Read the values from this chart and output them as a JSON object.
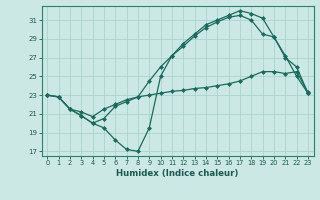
{
  "xlabel": "Humidex (Indice chaleur)",
  "bg_color": "#cce8e4",
  "grid_color": "#aad4ce",
  "line_color": "#1a6b5e",
  "xlim": [
    -0.5,
    23.5
  ],
  "ylim": [
    16.5,
    32.5
  ],
  "xticks": [
    0,
    1,
    2,
    3,
    4,
    5,
    6,
    7,
    8,
    9,
    10,
    11,
    12,
    13,
    14,
    15,
    16,
    17,
    18,
    19,
    20,
    21,
    22,
    23
  ],
  "yticks": [
    17,
    19,
    21,
    23,
    25,
    27,
    29,
    31
  ],
  "line1_x": [
    0,
    1,
    2,
    3,
    4,
    5,
    6,
    7,
    8,
    9,
    10,
    11,
    12,
    13,
    14,
    15,
    16,
    17,
    18,
    19,
    20,
    21,
    22,
    23
  ],
  "line1_y": [
    23.0,
    22.8,
    21.5,
    21.2,
    20.7,
    21.5,
    22.0,
    22.5,
    22.8,
    23.0,
    23.2,
    23.4,
    23.5,
    23.7,
    23.8,
    24.0,
    24.2,
    24.5,
    25.0,
    25.5,
    25.5,
    25.3,
    25.5,
    23.3
  ],
  "line2_x": [
    0,
    1,
    2,
    3,
    4,
    5,
    6,
    7,
    8,
    9,
    10,
    11,
    12,
    13,
    14,
    15,
    16,
    17,
    18,
    19,
    20,
    21,
    22,
    23
  ],
  "line2_y": [
    23.0,
    22.8,
    21.5,
    20.8,
    20.0,
    19.5,
    18.2,
    17.2,
    17.0,
    19.5,
    25.0,
    27.2,
    28.5,
    29.5,
    30.5,
    31.0,
    31.5,
    32.0,
    31.7,
    31.2,
    29.2,
    27.2,
    25.0,
    23.2
  ],
  "line3_x": [
    0,
    1,
    2,
    3,
    4,
    5,
    6,
    7,
    8,
    9,
    10,
    11,
    12,
    13,
    14,
    15,
    16,
    17,
    18,
    19,
    20,
    21,
    22,
    23
  ],
  "line3_y": [
    23.0,
    22.8,
    21.5,
    20.8,
    20.0,
    20.5,
    21.8,
    22.3,
    22.8,
    24.5,
    26.0,
    27.2,
    28.2,
    29.3,
    30.2,
    30.8,
    31.3,
    31.5,
    31.0,
    29.5,
    29.2,
    27.0,
    26.0,
    23.2
  ]
}
